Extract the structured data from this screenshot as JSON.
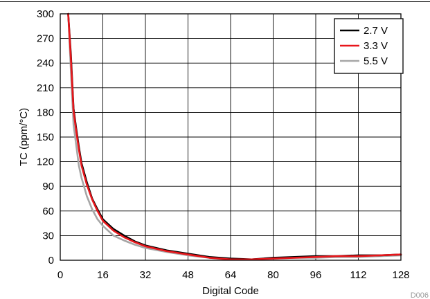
{
  "figure_code": "D006",
  "chart_data": {
    "type": "line",
    "xlabel": "Digital Code",
    "ylabel": "TC (ppm/°C)",
    "xlim": [
      0,
      128
    ],
    "ylim": [
      0,
      300
    ],
    "x_ticks": [
      0,
      16,
      32,
      48,
      64,
      80,
      96,
      112,
      128
    ],
    "y_ticks": [
      0,
      30,
      60,
      90,
      120,
      150,
      180,
      210,
      240,
      270,
      300
    ],
    "grid": true,
    "legend_position": "top-right",
    "series": [
      {
        "name": "2.7 V",
        "color": "#000000",
        "x": [
          3,
          4,
          5,
          6,
          7,
          8,
          10,
          12,
          14,
          16,
          20,
          24,
          28,
          32,
          40,
          48,
          56,
          64,
          72,
          80,
          88,
          96,
          104,
          112,
          120,
          128
        ],
        "y": [
          300,
          250,
          185,
          160,
          138,
          118,
          95,
          75,
          62,
          50,
          38,
          30,
          23,
          18,
          12,
          8,
          4,
          2,
          1,
          3,
          4,
          5,
          5,
          6,
          6,
          7
        ]
      },
      {
        "name": "3.3 V",
        "color": "#e8161b",
        "x": [
          3,
          4,
          5,
          6,
          7,
          8,
          10,
          12,
          14,
          16,
          20,
          24,
          28,
          32,
          40,
          48,
          56,
          64,
          72,
          80,
          88,
          96,
          104,
          112,
          120,
          128
        ],
        "y": [
          300,
          245,
          182,
          157,
          135,
          115,
          92,
          74,
          60,
          48,
          36,
          28,
          22,
          17,
          11,
          7,
          3,
          1,
          1,
          2,
          3,
          4,
          5,
          5,
          6,
          7
        ]
      },
      {
        "name": "5.5 V",
        "color": "#a6a6a6",
        "x": [
          3,
          4,
          5,
          6,
          7,
          8,
          10,
          12,
          14,
          16,
          20,
          24,
          28,
          32,
          40,
          48,
          56,
          64,
          72,
          80,
          88,
          96,
          104,
          112,
          120,
          128
        ],
        "y": [
          300,
          230,
          165,
          140,
          115,
          100,
          78,
          62,
          50,
          42,
          30,
          24,
          19,
          15,
          10,
          6,
          3,
          1,
          1,
          2,
          3,
          3,
          4,
          4,
          5,
          6
        ]
      }
    ]
  }
}
